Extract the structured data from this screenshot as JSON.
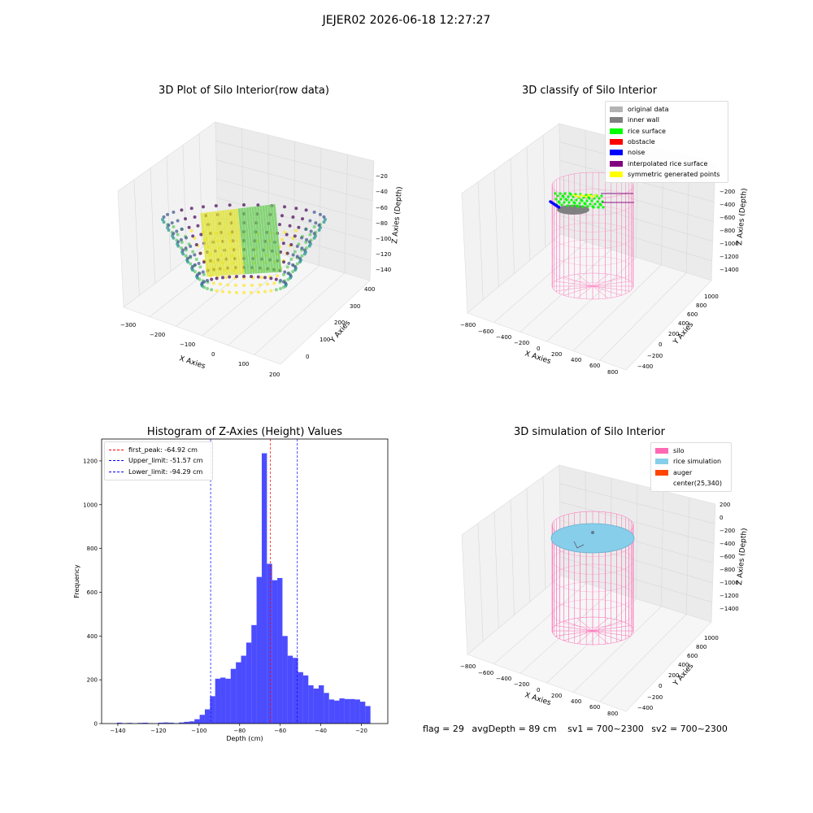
{
  "suptitle": "JEJER02 2026-06-18 12:27:27",
  "chart_data": [
    {
      "type": "scatter",
      "title": "3D Plot of Silo Interior(row data)",
      "xlabel": "X Axies",
      "ylabel": "Y Axies",
      "zlabel": "Z Axies (Depth)",
      "xticks": [
        "−300",
        "−200",
        "−100",
        "0",
        "100",
        "200"
      ],
      "yticks": [
        "0",
        "100",
        "200",
        "300",
        "400"
      ],
      "zticks": [
        "−20",
        "−40",
        "−60",
        "−80",
        "−100",
        "−120",
        "−140"
      ],
      "colormap": "viridis"
    },
    {
      "type": "scatter",
      "title": "3D classify of Silo Interior",
      "xlabel": "X Axies",
      "ylabel": "Y Axies",
      "zlabel": "Z Axies (Depth)",
      "xticks": [
        "−800",
        "−600",
        "−400",
        "−200",
        "0",
        "200",
        "400",
        "600",
        "800"
      ],
      "yticks": [
        "−400",
        "−200",
        "0",
        "200",
        "400",
        "600",
        "800",
        "1000"
      ],
      "zticks": [
        "−200",
        "−400",
        "−600",
        "−800",
        "−1000",
        "−1200",
        "−1400"
      ],
      "legend": [
        {
          "label": "original data",
          "color": "#b3b3b3"
        },
        {
          "label": "inner wall",
          "color": "#808080"
        },
        {
          "label": "rice surface",
          "color": "#00ff00"
        },
        {
          "label": "obstacle",
          "color": "#ff0000"
        },
        {
          "label": "noise",
          "color": "#0000ff"
        },
        {
          "label": "interpolated rice surface",
          "color": "#800080"
        },
        {
          "label": "symmetric generated points",
          "color": "#ffff00"
        }
      ]
    },
    {
      "type": "bar",
      "title": "Histogram of Z-Axies (Height) Values",
      "xlabel": "Depth (cm)",
      "ylabel": "Frequency",
      "xlim": [
        -148,
        -7
      ],
      "ylim": [
        0,
        1300
      ],
      "xticks": [
        -140,
        -120,
        -100,
        -80,
        -60,
        -40,
        -20
      ],
      "yticks": [
        0,
        200,
        400,
        600,
        800,
        1000,
        1200
      ],
      "bin_width": 2.55,
      "bin_start": -140.5,
      "values": [
        4,
        2,
        3,
        1,
        3,
        4,
        2,
        1,
        4,
        5,
        4,
        2,
        5,
        8,
        10,
        20,
        40,
        65,
        125,
        205,
        210,
        205,
        250,
        280,
        310,
        370,
        450,
        670,
        1235,
        730,
        655,
        665,
        400,
        310,
        300,
        235,
        220,
        175,
        160,
        175,
        140,
        110,
        105,
        115,
        112,
        112,
        110,
        100,
        80
      ],
      "bar_color": "#0000ff",
      "vlines": [
        {
          "label": "first_peak: -64.92 cm",
          "x": -64.92,
          "color": "#ff0000"
        },
        {
          "label": "Upper_limit: -51.57 cm",
          "x": -51.57,
          "color": "#0000ff"
        },
        {
          "label": "Lower_limit: -94.29 cm",
          "x": -94.29,
          "color": "#0000ff"
        }
      ]
    },
    {
      "type": "scatter",
      "title": "3D simulation of Silo Interior",
      "xlabel": "X Axies",
      "ylabel": "Y Axies",
      "zlabel": "Z Axies (Depth)",
      "xticks": [
        "−800",
        "−600",
        "−400",
        "−200",
        "0",
        "200",
        "400",
        "600",
        "800"
      ],
      "yticks": [
        "−400",
        "−200",
        "0",
        "200",
        "400",
        "600",
        "800",
        "1000"
      ],
      "zticks": [
        "200",
        "0",
        "−200",
        "−400",
        "−600",
        "−800",
        "−1000",
        "−1200",
        "−1400"
      ],
      "legend": [
        {
          "label": "silo",
          "color": "#ff69b4"
        },
        {
          "label": "rice simulation",
          "color": "#87ceeb"
        },
        {
          "label": "auger",
          "color": "#ff4500"
        },
        {
          "label": "center(25,340)",
          "color": "#ffffff"
        }
      ]
    }
  ],
  "footer": {
    "flag": "flag = 29",
    "avg_depth": "avgDepth = 89 cm",
    "sv1": "sv1 = 700~2300",
    "sv2": "sv2 = 700~2300"
  }
}
